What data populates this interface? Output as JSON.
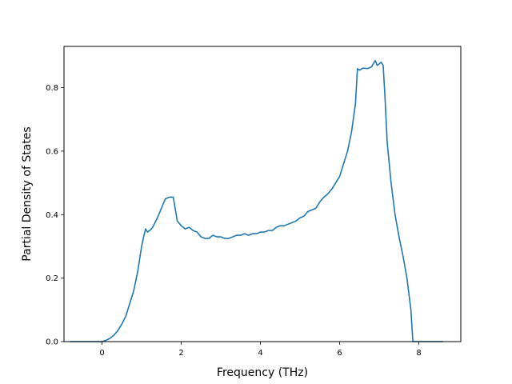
{
  "chart_data": {
    "type": "line",
    "title": "",
    "xlabel": "Frequency (THz)",
    "ylabel": "Partial Density of States",
    "xlim": [
      -0.96,
      9.06
    ],
    "ylim": [
      0,
      0.93
    ],
    "xticks": [
      0,
      2,
      4,
      6,
      8
    ],
    "yticks": [
      0.0,
      0.2,
      0.4,
      0.6,
      0.8
    ],
    "xtick_labels": [
      "0",
      "2",
      "4",
      "6",
      "8"
    ],
    "ytick_labels": [
      "0.0",
      "0.2",
      "0.4",
      "0.6",
      "0.8"
    ],
    "grid": false,
    "legend": "none",
    "color": "#1f77b4",
    "series": [
      {
        "x": [
          -0.8,
          -0.4,
          0.0,
          0.1,
          0.2,
          0.3,
          0.4,
          0.5,
          0.6,
          0.7,
          0.8,
          0.9,
          1.0,
          1.05,
          1.1,
          1.15,
          1.2,
          1.25,
          1.3,
          1.4,
          1.5,
          1.6,
          1.7,
          1.8,
          1.9,
          2.0,
          2.1,
          2.2,
          2.3,
          2.4,
          2.5,
          2.6,
          2.7,
          2.8,
          2.9,
          3.0,
          3.1,
          3.2,
          3.3,
          3.4,
          3.5,
          3.6,
          3.7,
          3.8,
          3.9,
          4.0,
          4.1,
          4.2,
          4.3,
          4.4,
          4.5,
          4.6,
          4.7,
          4.8,
          4.9,
          5.0,
          5.1,
          5.2,
          5.3,
          5.4,
          5.5,
          5.6,
          5.7,
          5.8,
          5.9,
          6.0,
          6.1,
          6.2,
          6.3,
          6.4,
          6.45,
          6.5,
          6.6,
          6.7,
          6.8,
          6.9,
          6.95,
          7.0,
          7.05,
          7.1,
          7.15,
          7.2,
          7.3,
          7.4,
          7.5,
          7.6,
          7.7,
          7.75,
          7.8,
          7.85,
          8.0,
          8.6
        ],
        "y": [
          0.0,
          0.0,
          0.0,
          0.004,
          0.01,
          0.02,
          0.035,
          0.055,
          0.08,
          0.12,
          0.16,
          0.22,
          0.3,
          0.33,
          0.355,
          0.345,
          0.35,
          0.355,
          0.365,
          0.39,
          0.42,
          0.45,
          0.455,
          0.455,
          0.38,
          0.365,
          0.355,
          0.36,
          0.35,
          0.345,
          0.33,
          0.325,
          0.325,
          0.335,
          0.33,
          0.33,
          0.325,
          0.325,
          0.33,
          0.335,
          0.335,
          0.34,
          0.335,
          0.34,
          0.34,
          0.345,
          0.345,
          0.35,
          0.35,
          0.36,
          0.365,
          0.365,
          0.37,
          0.375,
          0.38,
          0.39,
          0.395,
          0.41,
          0.415,
          0.42,
          0.44,
          0.455,
          0.465,
          0.48,
          0.5,
          0.52,
          0.56,
          0.6,
          0.66,
          0.75,
          0.86,
          0.855,
          0.862,
          0.86,
          0.865,
          0.885,
          0.87,
          0.875,
          0.88,
          0.87,
          0.76,
          0.63,
          0.5,
          0.4,
          0.33,
          0.27,
          0.2,
          0.15,
          0.1,
          0.0,
          0.0,
          0.0
        ]
      }
    ]
  }
}
